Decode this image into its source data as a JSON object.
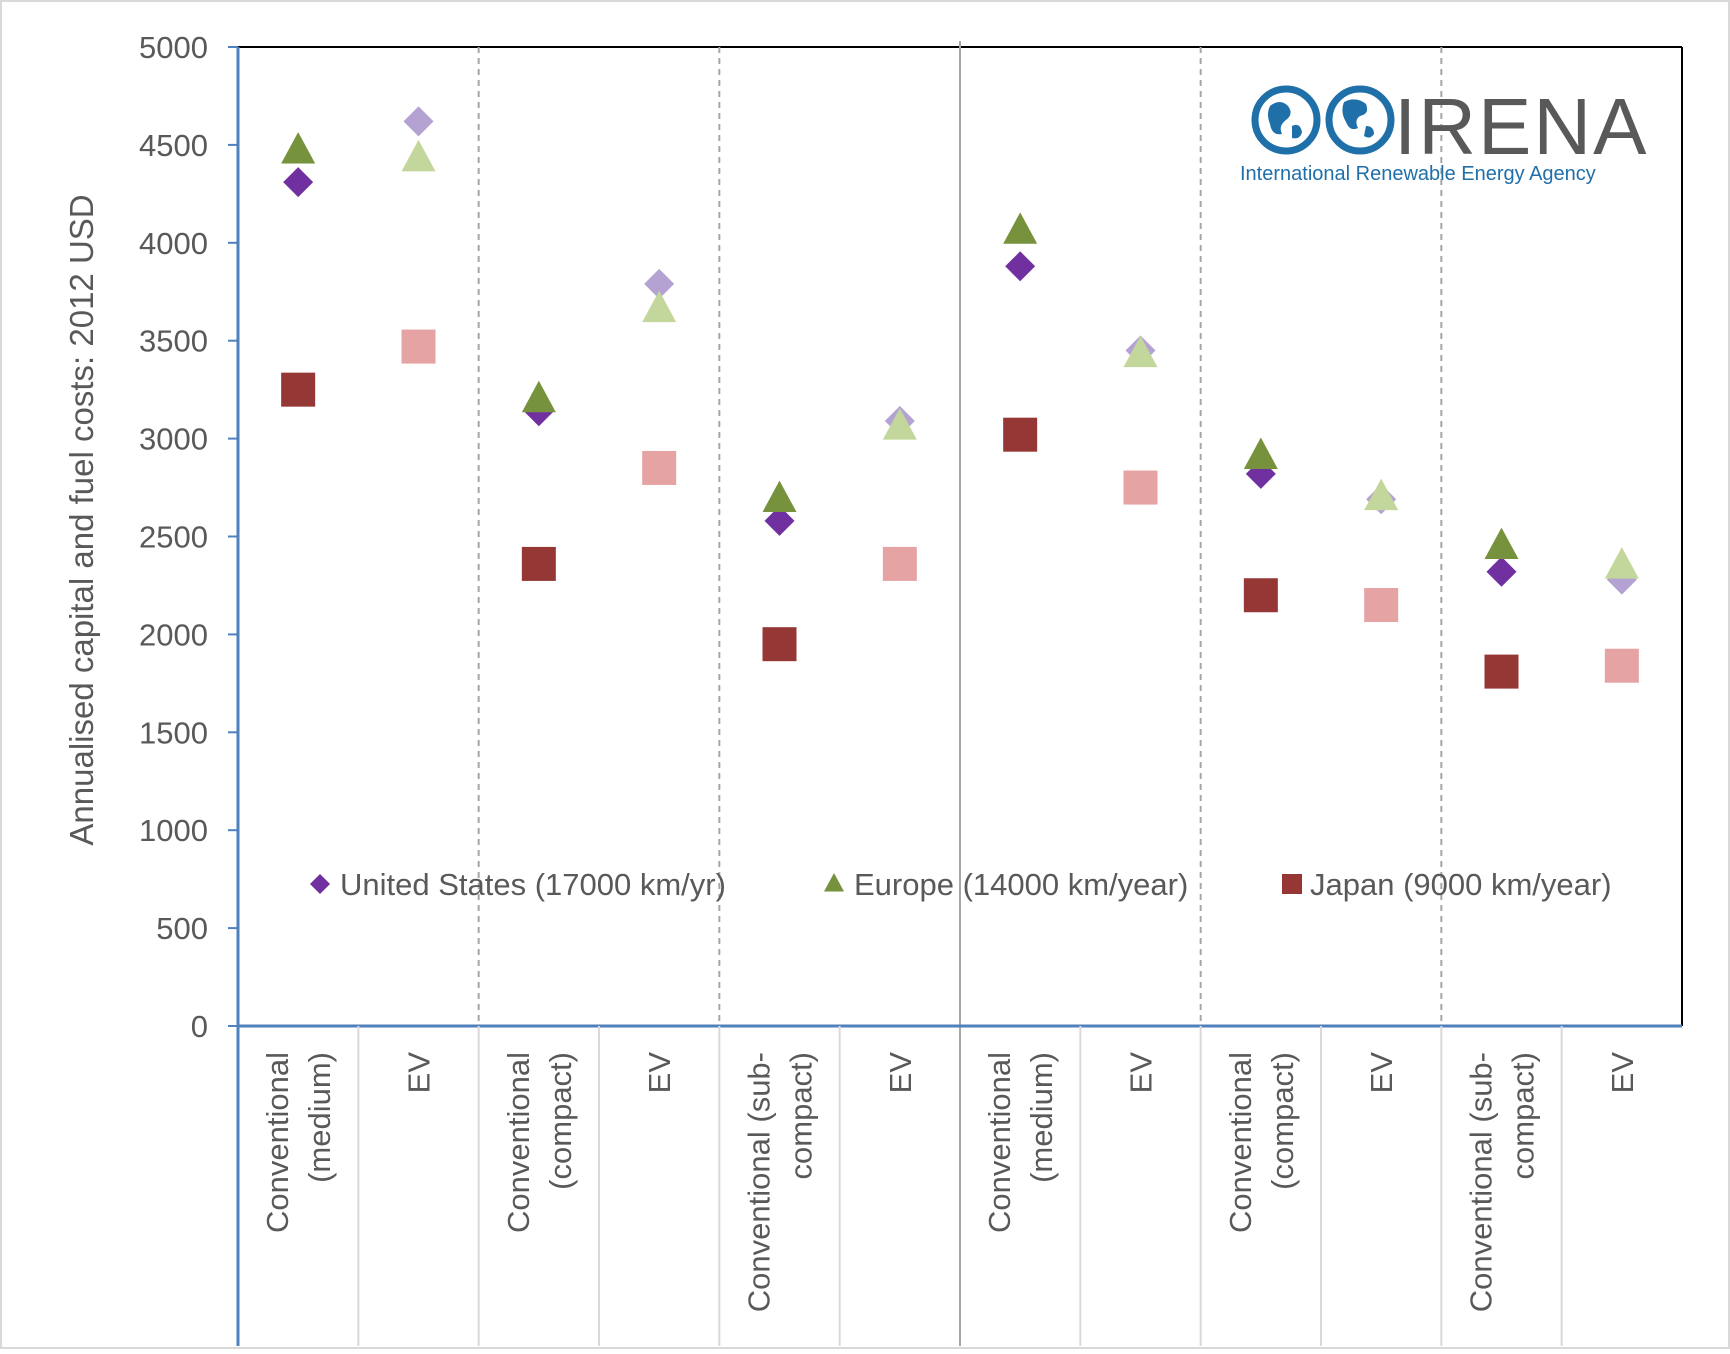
{
  "chart_data": {
    "type": "scatter",
    "ylabel": "Annualised capital and fuel costs: 2012 USD",
    "ylim": [
      0,
      5000
    ],
    "yticks": [
      "0",
      "500",
      "1000",
      "1500",
      "2000",
      "2500",
      "3000",
      "3500",
      "4000",
      "4500",
      "5000"
    ],
    "categories": [
      [
        "Conventional",
        "(medium)"
      ],
      [
        "EV"
      ],
      [
        "Conventional",
        "(compact)"
      ],
      [
        "EV"
      ],
      [
        "Conventional (sub-",
        "compact)"
      ],
      [
        "EV"
      ],
      [
        "Conventional",
        "(medium)"
      ],
      [
        "EV"
      ],
      [
        "Conventional",
        "(compact)"
      ],
      [
        "EV"
      ],
      [
        "Conventional (sub-",
        "compact)"
      ],
      [
        "EV"
      ]
    ],
    "series": [
      {
        "name": "United States (17000 km/yr)",
        "marker": "diamond",
        "color": "#7030a0",
        "light_color": "#b4a2d2",
        "values": [
          4310,
          4620,
          3140,
          3790,
          2580,
          3090,
          3880,
          3450,
          2820,
          2690,
          2320,
          2280
        ]
      },
      {
        "name": "Europe (14000 km/year)",
        "marker": "triangle",
        "color": "#76923c",
        "light_color": "#c3d69b",
        "values": [
          4470,
          4430,
          3200,
          3660,
          2690,
          3060,
          4060,
          3430,
          2910,
          2700,
          2450,
          2350
        ]
      },
      {
        "name": "Japan (9000 km/year)",
        "marker": "square",
        "color": "#953735",
        "light_color": "#e6a3a3",
        "values": [
          3250,
          3470,
          2360,
          2850,
          1950,
          2360,
          3020,
          2750,
          2200,
          2150,
          1810,
          1840
        ]
      }
    ],
    "ev_indices": [
      1,
      3,
      5,
      7,
      9,
      11
    ],
    "legend_position": "bottom-inside",
    "grid": false
  },
  "logo": {
    "wordmark": "IRENA",
    "tagline": "International Renewable Energy Agency",
    "color": "#1f6fa8",
    "wordmark_color": "#595959"
  }
}
